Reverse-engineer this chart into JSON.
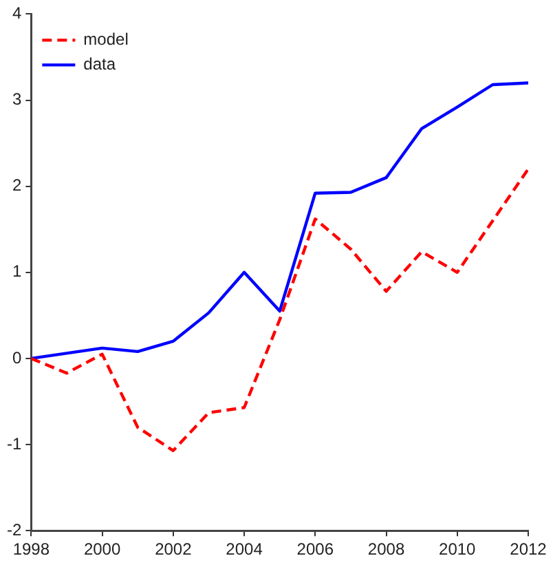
{
  "chart_data": {
    "type": "line",
    "x": [
      1998,
      1999,
      2000,
      2001,
      2002,
      2003,
      2004,
      2005,
      2006,
      2007,
      2008,
      2009,
      2010,
      2011,
      2012
    ],
    "series": [
      {
        "name": "model",
        "color": "#ff0000",
        "line_style": "dashed",
        "values": [
          0,
          -0.17,
          0.05,
          -0.8,
          -1.07,
          -0.63,
          -0.57,
          0.45,
          1.62,
          1.27,
          0.78,
          1.24,
          1.0,
          1.6,
          2.2
        ]
      },
      {
        "name": "data",
        "color": "#0000ff",
        "line_style": "solid",
        "values": [
          0,
          0.06,
          0.12,
          0.08,
          0.2,
          0.53,
          1.0,
          0.55,
          1.92,
          1.93,
          2.1,
          2.67,
          2.92,
          3.18,
          3.2
        ]
      }
    ],
    "xlim": [
      1998,
      2012
    ],
    "xticks": [
      1998,
      2000,
      2002,
      2004,
      2006,
      2008,
      2010,
      2012
    ],
    "ylim": [
      -2,
      4
    ],
    "yticks": [
      -2,
      -1,
      0,
      1,
      2,
      3,
      4
    ],
    "grid": false,
    "legend": "top left",
    "marker": "none"
  }
}
